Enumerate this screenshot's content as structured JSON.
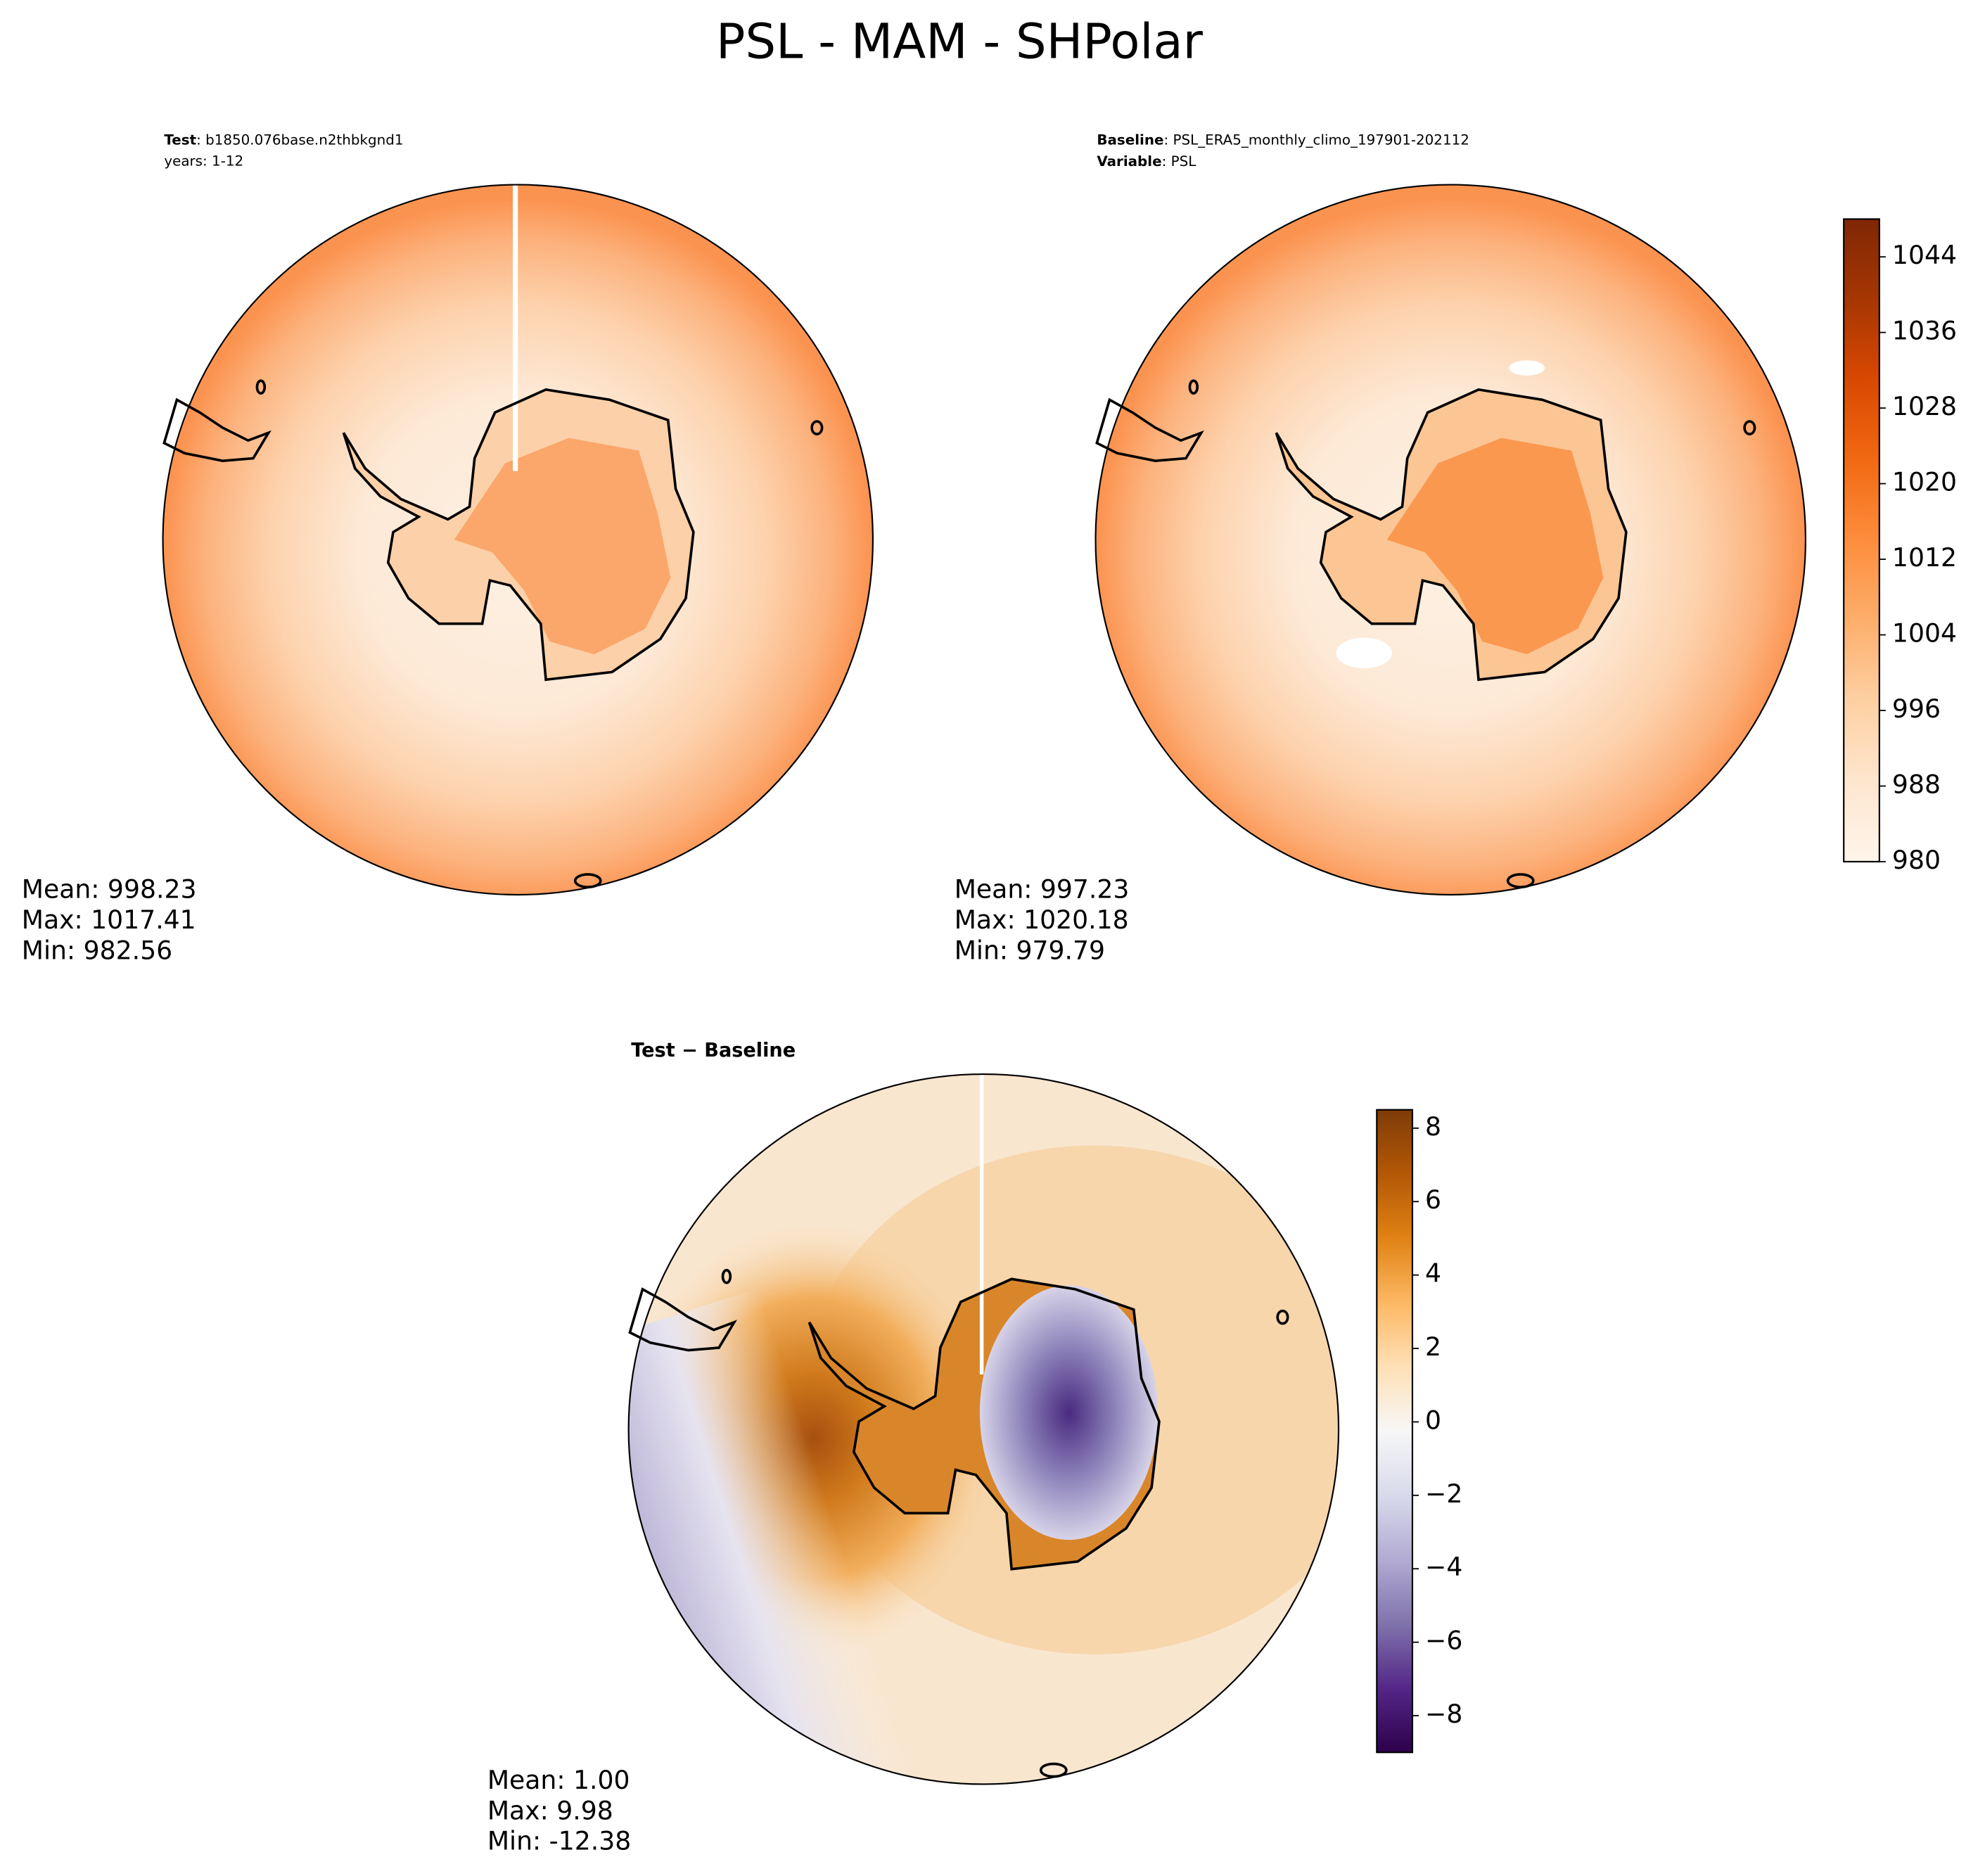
{
  "suptitle": "PSL - MAM - SHPolar",
  "chart_data": [
    {
      "type": "map",
      "case_label": "Test",
      "case_text": ": b1850.076base.n2thbkgnd1",
      "years": "years: 1-12",
      "stats": [
        "Mean: 998.23",
        "Max: 1017.41",
        "Min: 982.56"
      ]
    },
    {
      "type": "map",
      "case_label": "Baseline",
      "case_text": ": PSL_ERA5_monthly_climo_197901-202112",
      "variable_label": "Variable",
      "variable_text": ": PSL",
      "stats": [
        "Mean: 997.23",
        "Max: 1020.18",
        "Min: 979.79"
      ],
      "colorbar": {
        "zlim": [
          980,
          1048
        ],
        "zticks": [
          980,
          988,
          996,
          1004,
          1012,
          1020,
          1028,
          1036,
          1044
        ],
        "colors": [
          "#fff5eb",
          "#fee6ce",
          "#fdd0a2",
          "#fdae6b",
          "#fd8d3c",
          "#f16913",
          "#d94801",
          "#a63603",
          "#7f2704"
        ]
      }
    },
    {
      "type": "map",
      "title": "Test − Baseline",
      "stats": [
        "Mean:  1.00",
        "Max:  9.98",
        "Min: -12.38"
      ],
      "colorbar": {
        "zlim": [
          -9,
          8.5
        ],
        "zticks": [
          {
            "value": -8,
            "label": "−8"
          },
          {
            "value": -6,
            "label": "−6"
          },
          {
            "value": -4,
            "label": "−4"
          },
          {
            "value": -2,
            "label": "−2"
          },
          0,
          2,
          4,
          6,
          8
        ],
        "colors": [
          "#2d004b",
          "#542788",
          "#8073ac",
          "#b2abd2",
          "#d8daeb",
          "#f7f7f7",
          "#fee0b6",
          "#fdb863",
          "#e08214",
          "#b35806",
          "#7f3b08"
        ]
      }
    }
  ]
}
